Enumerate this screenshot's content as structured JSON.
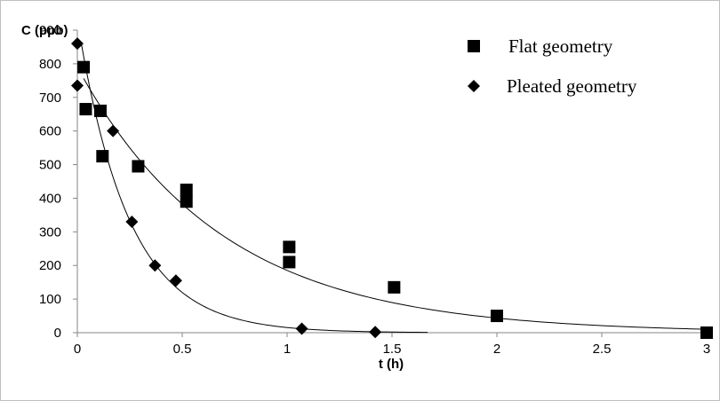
{
  "chart_data": {
    "type": "scatter",
    "title": "",
    "xlabel": "t (h)",
    "ylabel": "C (ppb)",
    "xlim": [
      0,
      3
    ],
    "ylim": [
      0,
      900
    ],
    "x_ticks": [
      "0",
      "0.5",
      "1",
      "1.5",
      "2",
      "2.5",
      "3"
    ],
    "y_ticks": [
      "0",
      "100",
      "200",
      "300",
      "400",
      "500",
      "600",
      "700",
      "800",
      "900"
    ],
    "grid": false,
    "legend_position": "top-right",
    "series": [
      {
        "name": "Flat geometry",
        "marker": "square",
        "color": "#000000",
        "points": [
          [
            0.03,
            790
          ],
          [
            0.04,
            665
          ],
          [
            0.11,
            660
          ],
          [
            0.12,
            525
          ],
          [
            0.29,
            495
          ],
          [
            0.52,
            425
          ],
          [
            0.52,
            390
          ],
          [
            1.01,
            255
          ],
          [
            1.01,
            210
          ],
          [
            1.51,
            135
          ],
          [
            2.0,
            50
          ],
          [
            3.0,
            0
          ]
        ],
        "fit": {
          "c0": 790,
          "k": 1.45,
          "x_start": 0.03,
          "x_end": 3.0
        }
      },
      {
        "name": "Pleated geometry",
        "marker": "diamond",
        "color": "#000000",
        "points": [
          [
            0.0,
            860
          ],
          [
            0.0,
            735
          ],
          [
            0.17,
            600
          ],
          [
            0.26,
            330
          ],
          [
            0.37,
            200
          ],
          [
            0.47,
            155
          ],
          [
            1.07,
            12
          ],
          [
            1.42,
            2
          ]
        ],
        "fit": {
          "c0": 930,
          "k": 4.1,
          "x_start": 0.02,
          "x_end": 1.67
        }
      }
    ]
  }
}
